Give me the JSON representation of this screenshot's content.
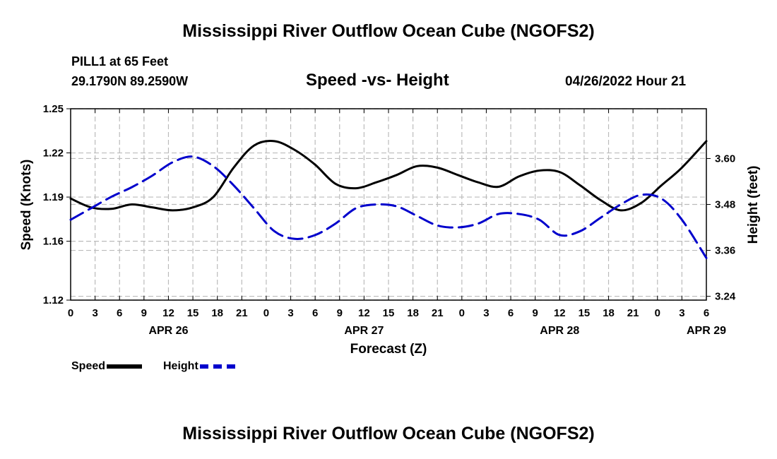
{
  "header": {
    "title": "Mississippi River Outflow Ocean Cube (NGOFS2)",
    "station": "PILL1 at 65 Feet",
    "coords": "29.1790N  89.2590W",
    "subtitle": "Speed -vs- Height",
    "timestamp": "04/26/2022 Hour 21"
  },
  "footer": {
    "title": "Mississippi River Outflow Ocean Cube (NGOFS2)"
  },
  "legend": {
    "speed_label": "Speed",
    "height_label": "Height"
  },
  "colors": {
    "speed": "#000000",
    "height": "#0000cc",
    "grid": "#bbbbbb"
  },
  "chart_data": {
    "type": "line",
    "xlabel": "Forecast (Z)",
    "ylabel_left": "Speed (Knots)",
    "ylabel_right": "Height (feet)",
    "x_hours_range": [
      0,
      78
    ],
    "x_tick_labels": [
      "0",
      "3",
      "6",
      "9",
      "12",
      "15",
      "18",
      "21",
      "0",
      "3",
      "6",
      "9",
      "12",
      "15",
      "18",
      "21",
      "0",
      "3",
      "6",
      "9",
      "12",
      "15",
      "18",
      "21",
      "0",
      "3",
      "6"
    ],
    "date_labels": [
      {
        "label": "APR 26",
        "hour": 12
      },
      {
        "label": "APR 27",
        "hour": 36
      },
      {
        "label": "APR 28",
        "hour": 60
      },
      {
        "label": "APR 29",
        "hour": 78
      }
    ],
    "left_axis": {
      "range": [
        1.12,
        1.25
      ],
      "ticks": [
        1.12,
        1.16,
        1.19,
        1.22,
        1.25
      ],
      "tick_labels": [
        "1.12",
        "1.16",
        "1.19",
        "1.22",
        "1.25"
      ]
    },
    "right_axis": {
      "range": [
        3.23,
        3.73
      ],
      "ticks": [
        3.24,
        3.36,
        3.48,
        3.6
      ],
      "tick_labels": [
        "3.24",
        "3.36",
        "3.48",
        "3.60"
      ]
    },
    "series": [
      {
        "name": "Speed",
        "axis": "left",
        "style": "solid",
        "x": [
          0,
          2.5,
          5,
          7.5,
          10,
          12.5,
          15,
          17.5,
          20,
          22.5,
          25,
          27.5,
          30,
          32.5,
          35,
          37.5,
          40,
          42.5,
          45,
          47.5,
          50,
          52.5,
          55,
          57.5,
          60,
          62.5,
          65,
          67.5,
          70,
          72.5,
          75,
          78
        ],
        "values": [
          1.189,
          1.183,
          1.182,
          1.185,
          1.183,
          1.181,
          1.183,
          1.19,
          1.21,
          1.225,
          1.228,
          1.222,
          1.212,
          1.199,
          1.196,
          1.2,
          1.205,
          1.211,
          1.21,
          1.205,
          1.2,
          1.197,
          1.204,
          1.208,
          1.207,
          1.198,
          1.188,
          1.181,
          1.186,
          1.198,
          1.21,
          1.228
        ]
      },
      {
        "name": "Height",
        "axis": "right",
        "style": "dashed",
        "x": [
          0,
          2.5,
          5,
          7.5,
          10,
          12.5,
          15,
          17.5,
          20,
          22.5,
          25,
          27.5,
          30,
          32.5,
          35,
          37.5,
          40,
          42.5,
          45,
          47.5,
          50,
          52.5,
          55,
          57.5,
          60,
          62.5,
          65,
          67.5,
          70,
          72.5,
          75,
          78
        ],
        "values": [
          3.44,
          3.47,
          3.5,
          3.525,
          3.555,
          3.59,
          3.605,
          3.58,
          3.53,
          3.47,
          3.41,
          3.39,
          3.4,
          3.43,
          3.47,
          3.48,
          3.475,
          3.45,
          3.425,
          3.42,
          3.43,
          3.455,
          3.455,
          3.44,
          3.4,
          3.41,
          3.445,
          3.48,
          3.505,
          3.495,
          3.44,
          3.34
        ]
      }
    ]
  }
}
